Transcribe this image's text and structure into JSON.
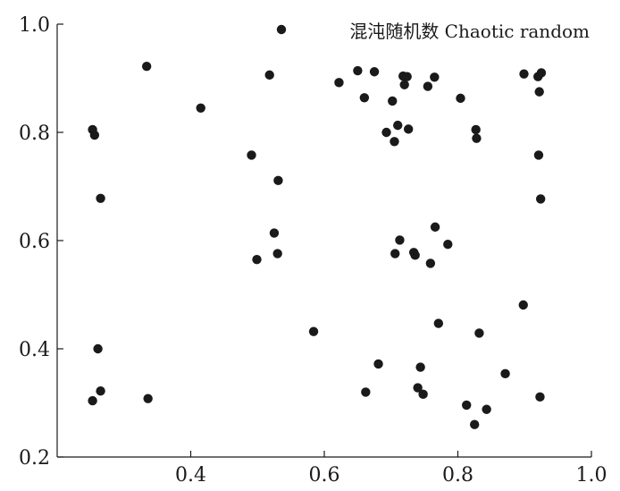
{
  "chart_data": {
    "type": "scatter",
    "title": "",
    "xlabel": "",
    "ylabel": "",
    "xlim": [
      0.2,
      1.0
    ],
    "ylim": [
      0.2,
      1.0
    ],
    "x_ticks": [
      "0.4",
      "0.6",
      "0.8",
      "1.0"
    ],
    "y_ticks": [
      "0.2",
      "0.4",
      "0.6",
      "0.8",
      "1.0"
    ],
    "grid": false,
    "legend": {
      "position": "top-right",
      "label": "混沌随机数 Chaotic random"
    },
    "colors": {
      "point": "#1a1a1a",
      "axis": "#1a1a1a"
    },
    "series": [
      {
        "name": "混沌随机数 Chaotic random",
        "points": [
          [
            0.253,
            0.805
          ],
          [
            0.256,
            0.795
          ],
          [
            0.265,
            0.678
          ],
          [
            0.261,
            0.4
          ],
          [
            0.265,
            0.322
          ],
          [
            0.253,
            0.304
          ],
          [
            0.334,
            0.922
          ],
          [
            0.336,
            0.308
          ],
          [
            0.415,
            0.845
          ],
          [
            0.491,
            0.758
          ],
          [
            0.499,
            0.565
          ],
          [
            0.518,
            0.906
          ],
          [
            0.525,
            0.614
          ],
          [
            0.531,
            0.711
          ],
          [
            0.53,
            0.576
          ],
          [
            0.584,
            0.432
          ],
          [
            0.622,
            0.892
          ],
          [
            0.65,
            0.914
          ],
          [
            0.66,
            0.864
          ],
          [
            0.662,
            0.32
          ],
          [
            0.675,
            0.912
          ],
          [
            0.681,
            0.372
          ],
          [
            0.693,
            0.8
          ],
          [
            0.702,
            0.858
          ],
          [
            0.705,
            0.783
          ],
          [
            0.706,
            0.576
          ],
          [
            0.71,
            0.813
          ],
          [
            0.713,
            0.601
          ],
          [
            0.718,
            0.904
          ],
          [
            0.72,
            0.888
          ],
          [
            0.724,
            0.903
          ],
          [
            0.726,
            0.806
          ],
          [
            0.734,
            0.578
          ],
          [
            0.736,
            0.573
          ],
          [
            0.74,
            0.328
          ],
          [
            0.744,
            0.366
          ],
          [
            0.748,
            0.316
          ],
          [
            0.755,
            0.885
          ],
          [
            0.759,
            0.558
          ],
          [
            0.765,
            0.902
          ],
          [
            0.766,
            0.625
          ],
          [
            0.771,
            0.447
          ],
          [
            0.785,
            0.593
          ],
          [
            0.804,
            0.863
          ],
          [
            0.813,
            0.296
          ],
          [
            0.825,
            0.26
          ],
          [
            0.827,
            0.805
          ],
          [
            0.828,
            0.789
          ],
          [
            0.832,
            0.429
          ],
          [
            0.843,
            0.288
          ],
          [
            0.871,
            0.354
          ],
          [
            0.898,
            0.481
          ],
          [
            0.899,
            0.908
          ],
          [
            0.92,
            0.903
          ],
          [
            0.921,
            0.758
          ],
          [
            0.922,
            0.875
          ],
          [
            0.923,
            0.311
          ],
          [
            0.924,
            0.677
          ],
          [
            0.925,
            0.91
          ]
        ]
      }
    ]
  }
}
